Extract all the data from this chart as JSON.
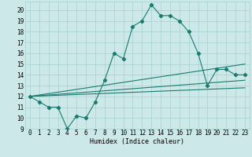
{
  "title": "",
  "xlabel": "Humidex (Indice chaleur)",
  "background_color": "#cce8e8",
  "line_color": "#1a7a6e",
  "xlim": [
    -0.5,
    23.5
  ],
  "ylim": [
    9,
    20.8
  ],
  "yticks": [
    9,
    10,
    11,
    12,
    13,
    14,
    15,
    16,
    17,
    18,
    19,
    20
  ],
  "xticks": [
    0,
    1,
    2,
    3,
    4,
    5,
    6,
    7,
    8,
    9,
    10,
    11,
    12,
    13,
    14,
    15,
    16,
    17,
    18,
    19,
    20,
    21,
    22,
    23
  ],
  "main_series": [
    [
      0,
      12
    ],
    [
      1,
      11.5
    ],
    [
      2,
      11
    ],
    [
      3,
      11
    ],
    [
      4,
      9.0
    ],
    [
      5,
      10.2
    ],
    [
      6,
      10.0
    ],
    [
      7,
      11.5
    ],
    [
      8,
      13.5
    ],
    [
      9,
      16.0
    ],
    [
      10,
      15.5
    ],
    [
      11,
      18.5
    ],
    [
      12,
      19.0
    ],
    [
      13,
      20.5
    ],
    [
      14,
      19.5
    ],
    [
      15,
      19.5
    ],
    [
      16,
      19.0
    ],
    [
      17,
      18.0
    ],
    [
      18,
      16.0
    ],
    [
      19,
      13.0
    ],
    [
      20,
      14.5
    ],
    [
      21,
      14.5
    ],
    [
      22,
      14.0
    ],
    [
      23,
      14.0
    ]
  ],
  "lower_line": [
    [
      0,
      12.0
    ],
    [
      23,
      12.8
    ]
  ],
  "mid_line": [
    [
      0,
      12.0
    ],
    [
      23,
      13.5
    ]
  ],
  "upper_line": [
    [
      0,
      12.0
    ],
    [
      23,
      15.0
    ]
  ],
  "grid_color": "#a8d0d0",
  "xlabel_fontsize": 6.0,
  "tick_fontsize": 5.5
}
